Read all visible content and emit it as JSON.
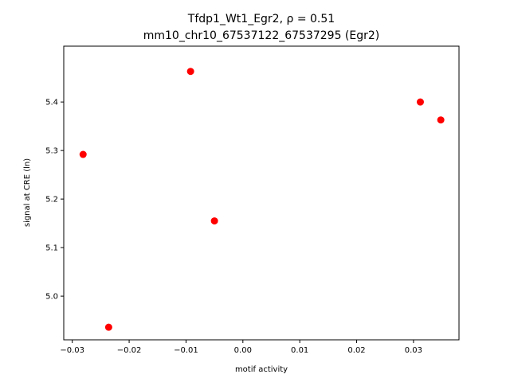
{
  "chart_data": {
    "type": "scatter",
    "title_line1": "Tfdp1_Wt1_Egr2, ρ = 0.51",
    "title_line2": "mm10_chr10_67537122_67537295 (Egr2)",
    "xlabel": "motif activity",
    "ylabel": "signal at CRE (ln)",
    "xlim": [
      -0.0315,
      0.038
    ],
    "ylim": [
      4.91,
      5.515
    ],
    "xticks": [
      -0.03,
      -0.02,
      -0.01,
      0.0,
      0.01,
      0.02,
      0.03
    ],
    "xtick_labels": [
      "−0.03",
      "−0.02",
      "−0.01",
      "0.00",
      "0.01",
      "0.02",
      "0.03"
    ],
    "yticks": [
      5.0,
      5.1,
      5.2,
      5.3,
      5.4
    ],
    "ytick_labels": [
      "5.0",
      "5.1",
      "5.2",
      "5.3",
      "5.4"
    ],
    "grid": false,
    "marker_color": "#ff0000",
    "points": [
      {
        "x": -0.0281,
        "y": 5.292
      },
      {
        "x": -0.0236,
        "y": 4.936
      },
      {
        "x": -0.0092,
        "y": 5.463
      },
      {
        "x": -0.005,
        "y": 5.155
      },
      {
        "x": 0.0312,
        "y": 5.4
      },
      {
        "x": 0.0348,
        "y": 5.363
      }
    ]
  }
}
